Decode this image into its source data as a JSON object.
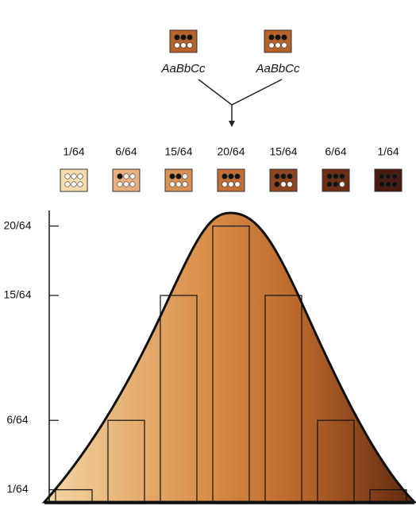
{
  "chart_data": {
    "type": "bar",
    "parents": [
      "AaBbCc",
      "AaBbCc"
    ],
    "categories": [
      null,
      null,
      null,
      null,
      null,
      null,
      null
    ],
    "values": [
      0.015625,
      0.09375,
      0.234375,
      0.3125,
      0.234375,
      0.09375,
      0.015625
    ],
    "value_labels": [
      "1/64",
      "6/64",
      "15/64",
      "20/64",
      "15/64",
      "6/64",
      "1/64"
    ],
    "colors": [
      "#f6dcae",
      "#e8b07e",
      "#d99055",
      "#c56d36",
      "#8e4520",
      "#6e2e14",
      "#4a1a10"
    ],
    "ylim": [
      0,
      0.33
    ],
    "yticks": [
      {
        "value": 0.015625,
        "label": "1/64"
      },
      {
        "value": 0.09375,
        "label": "6/64"
      },
      {
        "value": 0.234375,
        "label": "15/64"
      },
      {
        "value": 0.3125,
        "label": "20/64"
      }
    ]
  }
}
